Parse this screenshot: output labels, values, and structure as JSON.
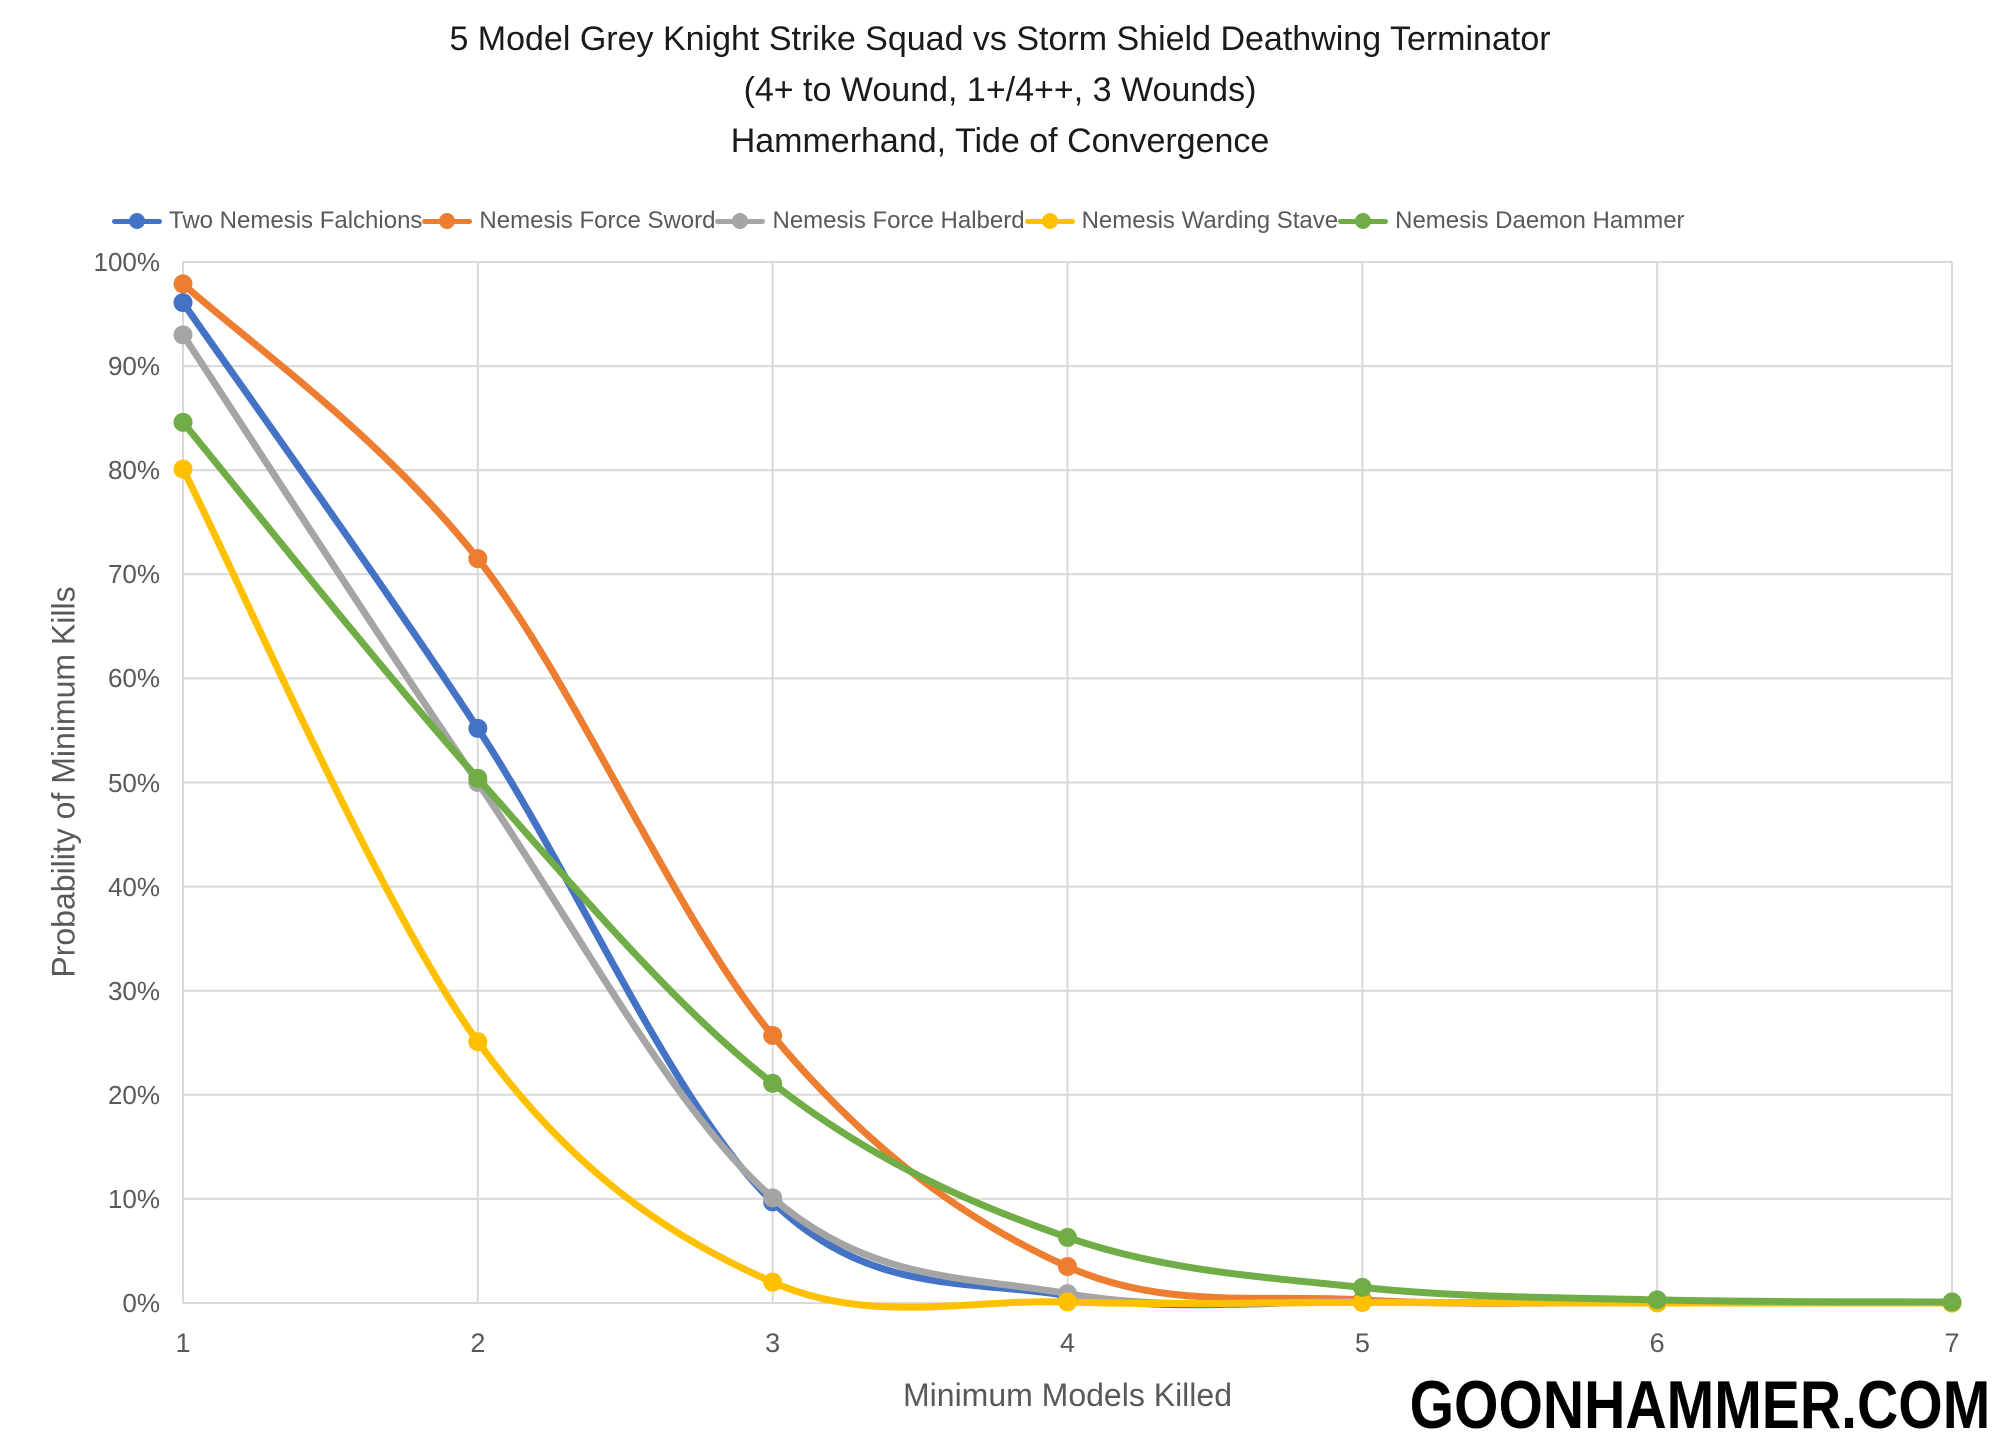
{
  "title": {
    "line1": "5 Model Grey Knight Strike Squad vs Storm Shield Deathwing Terminator",
    "line2": "(4+ to Wound, 1+/4++, 3 Wounds)",
    "line3": "Hammerhand, Tide of Convergence"
  },
  "watermark": "GOONHAMMER.COM",
  "colors": {
    "gridline": "#D9D9D9",
    "axis_text": "#595959",
    "title_text": "#1a1a1a"
  },
  "chart_data": {
    "type": "line",
    "line_style": "smooth",
    "grid": true,
    "legend_position": "top",
    "x": [
      1,
      2,
      3,
      4,
      5,
      6,
      7
    ],
    "x_tick_labels": [
      "1",
      "2",
      "3",
      "4",
      "5",
      "6",
      "7"
    ],
    "y_tick_labels": [
      "0%",
      "10%",
      "20%",
      "30%",
      "40%",
      "50%",
      "60%",
      "70%",
      "80%",
      "90%",
      "100%"
    ],
    "ylim": [
      0,
      100
    ],
    "xlabel": "Minimum Models Killed",
    "ylabel": "Probability of Minimum Kills",
    "series": [
      {
        "name": "Two Nemesis Falchions",
        "color": "#4472C4",
        "values": [
          96.1,
          55.2,
          9.7,
          0.7,
          0.1,
          0.05,
          0
        ]
      },
      {
        "name": "Nemesis Force Sword",
        "color": "#ED7D31",
        "values": [
          97.9,
          71.5,
          25.7,
          3.5,
          0.3,
          0.05,
          0
        ]
      },
      {
        "name": "Nemesis Force Halberd",
        "color": "#A5A5A5",
        "values": [
          93.0,
          50.0,
          10.1,
          0.9,
          0.1,
          0.05,
          0
        ]
      },
      {
        "name": "Nemesis Warding Stave",
        "color": "#FFC000",
        "values": [
          80.1,
          25.1,
          2.0,
          0.1,
          0.05,
          0,
          0
        ]
      },
      {
        "name": "Nemesis Daemon Hammer",
        "color": "#70AD47",
        "values": [
          84.6,
          50.4,
          21.1,
          6.3,
          1.5,
          0.3,
          0.1
        ]
      }
    ]
  }
}
